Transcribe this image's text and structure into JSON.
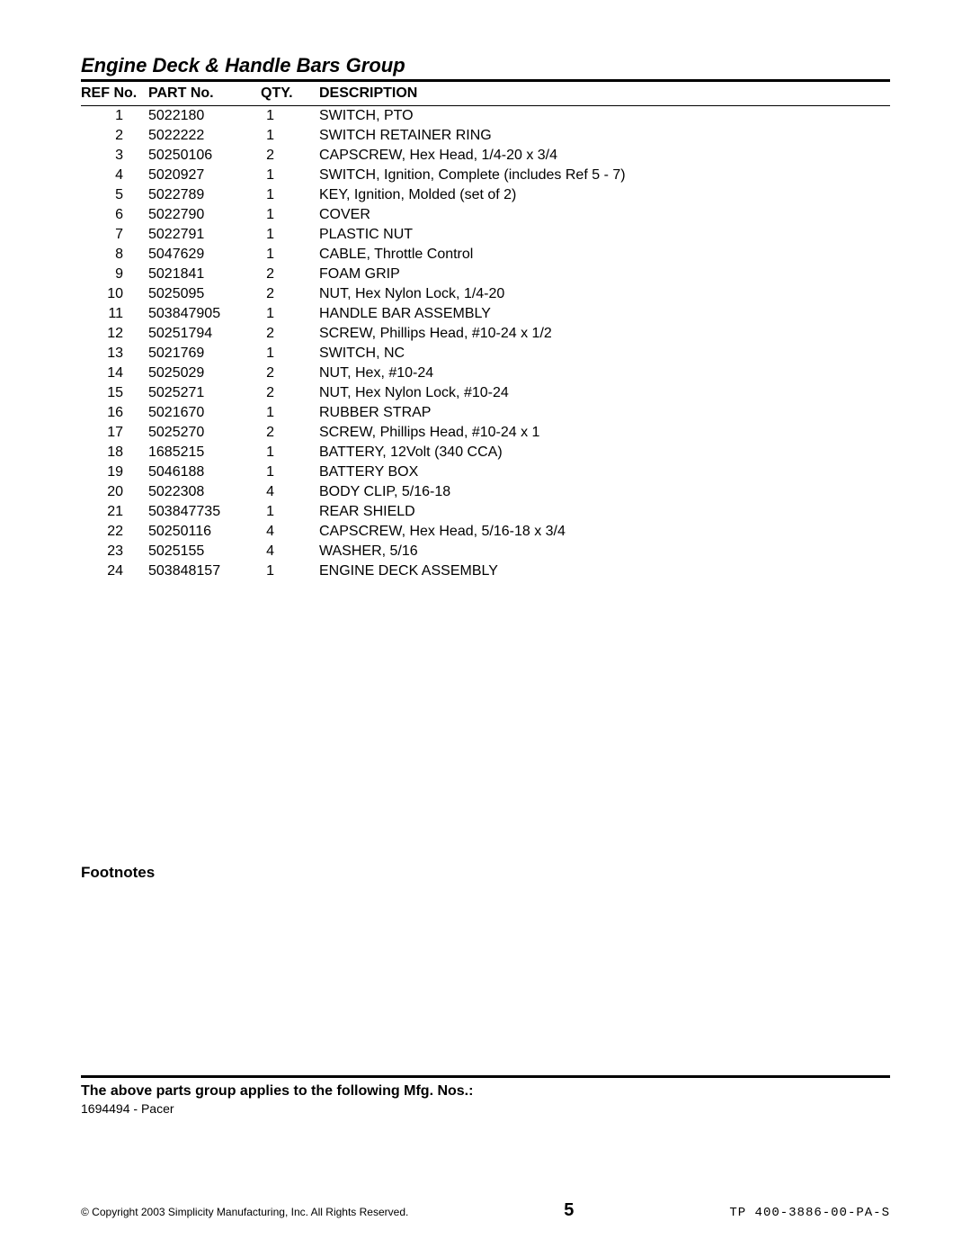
{
  "title": "Engine Deck & Handle Bars Group",
  "columns": {
    "ref": "REF No.",
    "part": "PART No.",
    "qty": "QTY.",
    "desc": "DESCRIPTION"
  },
  "rows": [
    {
      "ref": "1",
      "part": "5022180",
      "qty": "1",
      "desc": "SWITCH, PTO"
    },
    {
      "ref": "2",
      "part": "5022222",
      "qty": "1",
      "desc": "SWITCH RETAINER RING"
    },
    {
      "ref": "3",
      "part": "50250106",
      "qty": "2",
      "desc": "CAPSCREW, Hex Head, 1/4-20 x 3/4"
    },
    {
      "ref": "4",
      "part": "5020927",
      "qty": "1",
      "desc": "SWITCH, Ignition, Complete (includes Ref 5 - 7)"
    },
    {
      "ref": "5",
      "part": "5022789",
      "qty": "1",
      "desc": "KEY, Ignition, Molded (set of 2)"
    },
    {
      "ref": "6",
      "part": "5022790",
      "qty": "1",
      "desc": "COVER"
    },
    {
      "ref": "7",
      "part": "5022791",
      "qty": "1",
      "desc": "PLASTIC NUT"
    },
    {
      "ref": "8",
      "part": "5047629",
      "qty": "1",
      "desc": "CABLE, Throttle Control"
    },
    {
      "ref": "9",
      "part": "5021841",
      "qty": "2",
      "desc": "FOAM GRIP"
    },
    {
      "ref": "10",
      "part": "5025095",
      "qty": "2",
      "desc": "NUT, Hex Nylon Lock, 1/4-20"
    },
    {
      "ref": "11",
      "part": "503847905",
      "qty": "1",
      "desc": "HANDLE BAR ASSEMBLY"
    },
    {
      "ref": "12",
      "part": "50251794",
      "qty": "2",
      "desc": "SCREW, Phillips Head, #10-24 x 1/2"
    },
    {
      "ref": "13",
      "part": "5021769",
      "qty": "1",
      "desc": "SWITCH, NC"
    },
    {
      "ref": "14",
      "part": "5025029",
      "qty": "2",
      "desc": "NUT, Hex, #10-24"
    },
    {
      "ref": "15",
      "part": "5025271",
      "qty": "2",
      "desc": "NUT, Hex Nylon Lock, #10-24"
    },
    {
      "ref": "16",
      "part": "5021670",
      "qty": "1",
      "desc": "RUBBER STRAP"
    },
    {
      "ref": "17",
      "part": "5025270",
      "qty": "2",
      "desc": "SCREW, Phillips Head, #10-24 x 1"
    },
    {
      "ref": "18",
      "part": "1685215",
      "qty": "1",
      "desc": "BATTERY, 12Volt (340 CCA)"
    },
    {
      "ref": "19",
      "part": "5046188",
      "qty": "1",
      "desc": "BATTERY BOX"
    },
    {
      "ref": "20",
      "part": "5022308",
      "qty": "4",
      "desc": "BODY CLIP, 5/16-18"
    },
    {
      "ref": "21",
      "part": "503847735",
      "qty": "1",
      "desc": "REAR SHIELD"
    },
    {
      "ref": "22",
      "part": "50250116",
      "qty": "4",
      "desc": "CAPSCREW, Hex Head, 5/16-18 x 3/4"
    },
    {
      "ref": "23",
      "part": "5025155",
      "qty": "4",
      "desc": "WASHER, 5/16"
    },
    {
      "ref": "24",
      "part": "503848157",
      "qty": "1",
      "desc": "ENGINE DECK ASSEMBLY"
    }
  ],
  "footnotes_label": "Footnotes",
  "applies_label": "The above parts group applies to the following Mfg. Nos.:",
  "applies_items": [
    "1694494 - Pacer"
  ],
  "footer": {
    "copyright": "© Copyright 2003 Simplicity Manufacturing, Inc. All Rights Reserved.",
    "page": "5",
    "docid": "TP 400-3886-00-PA-S"
  }
}
